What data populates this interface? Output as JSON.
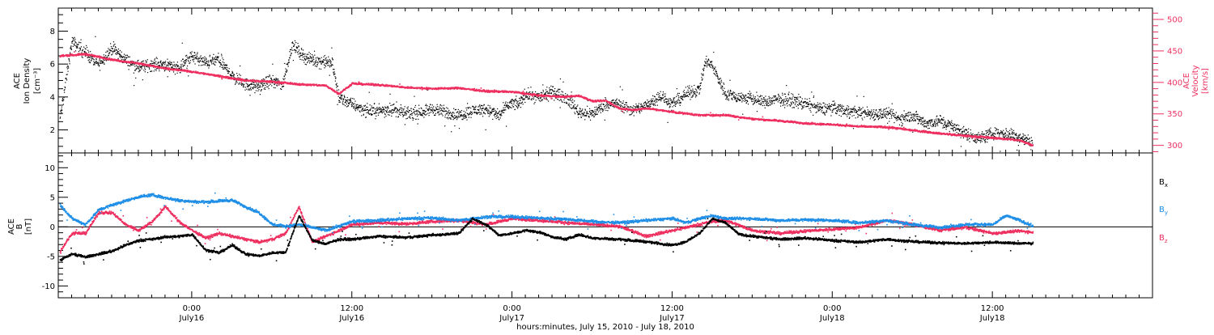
{
  "xlabel": "hours:minutes, July 15, 2010 - July 18, 2010",
  "x_ticks": [
    {
      "time": "0:00",
      "date": "July16",
      "h": 24
    },
    {
      "time": "12:00",
      "date": "July16",
      "h": 36
    },
    {
      "time": "0:00",
      "date": "July17",
      "h": 48
    },
    {
      "time": "12:00",
      "date": "July17",
      "h": 60
    },
    {
      "time": "0:00",
      "date": "July18",
      "h": 72
    },
    {
      "time": "12:00",
      "date": "July18",
      "h": 84
    }
  ],
  "colors": {
    "black": "#000000",
    "pink": "#ee2f5f",
    "blue": "#1f8ee6"
  },
  "chart_data": [
    {
      "type": "scatter",
      "title": "",
      "xlim": [
        14.0,
        96.0
      ],
      "left_axis": {
        "label_lines": [
          "ACE",
          "Ion Density"
        ],
        "unit": "[cm⁻³]",
        "ylim": [
          0.6,
          9.4
        ],
        "ticks": [
          2,
          4,
          6,
          8
        ]
      },
      "right_axis": {
        "label_lines": [
          "ACE",
          "Velocity"
        ],
        "unit": "[km/s]",
        "ylim": [
          288,
          518
        ],
        "ticks": [
          300,
          350,
          400,
          450,
          500
        ]
      },
      "series": [
        {
          "name": "Ion Density",
          "axis": "left",
          "color": "#000000",
          "x": [
            14.1,
            15,
            16,
            17,
            18,
            19,
            20,
            21,
            22,
            23,
            24,
            25,
            26,
            27,
            28,
            29,
            29.8,
            30.8,
            31.5,
            32.5,
            33.5,
            34.5,
            35,
            36,
            37,
            38,
            39,
            40,
            41,
            42,
            43,
            44,
            45,
            46,
            47,
            47.8,
            48.5,
            49,
            50,
            51,
            52,
            53,
            54,
            55,
            56,
            57,
            58,
            59,
            60,
            61,
            62,
            62.5,
            63,
            64,
            65,
            66,
            67,
            68,
            69,
            70,
            71,
            72,
            73,
            74,
            75,
            76,
            77,
            78,
            79,
            80,
            81,
            82,
            83,
            84,
            85,
            86,
            87
          ],
          "y": [
            2.7,
            7.4,
            6.7,
            6.0,
            7.0,
            6.3,
            5.8,
            6.0,
            6.0,
            5.8,
            6.5,
            6.1,
            6.3,
            5.3,
            4.8,
            4.6,
            5.0,
            4.8,
            7.2,
            6.4,
            6.2,
            6.1,
            4.0,
            3.6,
            3.2,
            3.2,
            3.3,
            3.0,
            3.1,
            3.3,
            3.1,
            2.9,
            3.2,
            3.3,
            2.9,
            3.6,
            3.6,
            4.2,
            4.0,
            4.3,
            4.0,
            3.1,
            3.0,
            3.6,
            3.6,
            3.2,
            3.5,
            4.1,
            3.6,
            4.2,
            4.5,
            6.2,
            5.9,
            4.2,
            4.0,
            3.9,
            3.7,
            3.9,
            3.8,
            3.6,
            3.3,
            3.4,
            3.2,
            3.1,
            3.0,
            3.0,
            2.7,
            2.9,
            2.4,
            2.6,
            2.2,
            1.8,
            1.5,
            1.8,
            1.8,
            1.6,
            1.2
          ]
        },
        {
          "name": "Velocity",
          "axis": "right",
          "color": "#ee2f5f",
          "x": [
            14.1,
            16,
            18,
            20,
            22,
            24,
            26,
            28,
            30,
            32,
            34,
            35,
            36,
            38,
            40,
            42,
            44,
            46,
            48,
            50,
            52,
            53,
            54,
            55,
            56,
            57,
            58,
            60,
            62,
            64,
            66,
            68,
            70,
            72,
            74,
            76,
            78,
            80,
            82,
            84,
            86,
            87
          ],
          "y": [
            443,
            446,
            437,
            431,
            423,
            418,
            411,
            404,
            402,
            398,
            396,
            383,
            399,
            397,
            393,
            391,
            392,
            387,
            386,
            380,
            378,
            380,
            371,
            372,
            360,
            357,
            360,
            354,
            349,
            349,
            343,
            340,
            336,
            334,
            331,
            330,
            325,
            320,
            316,
            313,
            309,
            301
          ]
        }
      ]
    },
    {
      "type": "scatter",
      "title": "",
      "xlim": [
        14.0,
        96.0
      ],
      "left_axis": {
        "label_lines": [
          "ACE",
          "B"
        ],
        "unit": "[nT]",
        "ylim": [
          -12,
          12.5
        ],
        "ticks": [
          -10,
          -5,
          0,
          5,
          10
        ]
      },
      "zero_line": 0,
      "legend": {
        "placement": "right",
        "labels": [
          "B",
          "B",
          "B"
        ],
        "subscripts": [
          "x",
          "y",
          "z"
        ]
      },
      "series": [
        {
          "name": "Bx",
          "color": "#000000",
          "x": [
            14.1,
            15,
            16,
            17,
            18,
            19,
            20,
            21,
            22,
            23,
            24,
            25,
            26,
            27,
            28,
            29,
            30,
            31,
            32,
            33,
            34,
            35,
            36,
            38,
            40,
            42,
            44,
            45,
            46,
            47,
            48,
            49,
            50,
            51,
            52,
            53,
            54,
            56,
            58,
            60,
            61,
            62,
            63,
            64,
            65,
            66,
            68,
            70,
            72,
            74,
            76,
            78,
            80,
            82,
            84,
            86,
            87
          ],
          "y": [
            -5.5,
            -4.5,
            -5.0,
            -4.5,
            -4.0,
            -3.0,
            -2.2,
            -2.0,
            -1.6,
            -1.5,
            -1.2,
            -3.8,
            -4.3,
            -3.0,
            -4.5,
            -4.8,
            -4.3,
            -4.2,
            2.0,
            -2.2,
            -2.8,
            -2.0,
            -2.0,
            -1.5,
            -1.7,
            -1.3,
            -1.0,
            1.5,
            0.5,
            -1.3,
            -1.0,
            -0.5,
            -0.8,
            -1.6,
            -2.0,
            -1.2,
            -1.8,
            -2.0,
            -2.4,
            -3.0,
            -2.4,
            -1.0,
            1.5,
            0.7,
            -1.2,
            -1.5,
            -2.0,
            -1.8,
            -2.2,
            -2.5,
            -2.0,
            -2.4,
            -2.6,
            -2.7,
            -2.5,
            -2.7,
            -2.7
          ]
        },
        {
          "name": "By",
          "color": "#1f8ee6",
          "x": [
            14.1,
            15,
            16,
            17,
            18,
            19,
            20,
            21,
            22,
            23,
            24,
            25,
            26,
            27,
            28,
            29,
            30,
            31,
            32,
            34,
            36,
            38,
            40,
            42,
            44,
            46,
            48,
            50,
            52,
            54,
            56,
            58,
            60,
            61,
            62,
            63,
            64,
            66,
            68,
            70,
            72,
            74,
            76,
            78,
            80,
            82,
            84,
            85,
            86,
            87
          ],
          "y": [
            3.8,
            1.5,
            0.5,
            3.0,
            3.8,
            4.5,
            5.2,
            5.5,
            5.0,
            4.6,
            4.4,
            4.3,
            4.5,
            4.6,
            3.5,
            2.5,
            0.5,
            0.2,
            0.5,
            -0.5,
            1.0,
            1.2,
            1.5,
            1.6,
            1.2,
            1.8,
            1.8,
            1.6,
            1.4,
            1.0,
            0.8,
            1.2,
            1.5,
            0.8,
            1.5,
            2.0,
            1.5,
            1.5,
            1.2,
            1.3,
            1.2,
            0.8,
            1.2,
            0.5,
            0.0,
            0.5,
            0.5,
            2.0,
            1.2,
            0.2
          ]
        },
        {
          "name": "Bz",
          "color": "#ee2f5f",
          "x": [
            14.1,
            15,
            16,
            17,
            18,
            19,
            20,
            21,
            22,
            23,
            24,
            25,
            26,
            27,
            28,
            29,
            30,
            31,
            32,
            33,
            34,
            36,
            38,
            40,
            42,
            44,
            46,
            48,
            50,
            52,
            54,
            56,
            58,
            60,
            61,
            62,
            63,
            64,
            66,
            68,
            70,
            72,
            74,
            76,
            78,
            80,
            82,
            84,
            86,
            87
          ],
          "y": [
            -4.0,
            -1.0,
            -1.0,
            2.5,
            2.5,
            0.5,
            -0.5,
            1.0,
            3.5,
            1.0,
            -0.5,
            -1.8,
            -1.0,
            -1.5,
            -2.0,
            -2.5,
            -2.0,
            -1.0,
            3.5,
            -2.5,
            -1.5,
            0.5,
            0.8,
            0.6,
            1.0,
            1.2,
            0.5,
            1.5,
            1.2,
            0.8,
            0.5,
            0.2,
            -1.5,
            -0.5,
            0.0,
            0.5,
            1.0,
            1.2,
            -0.5,
            -1.0,
            -0.6,
            -0.3,
            0.0,
            1.2,
            0.5,
            -0.5,
            0.0,
            -1.0,
            -0.6,
            -0.8
          ]
        }
      ]
    }
  ]
}
